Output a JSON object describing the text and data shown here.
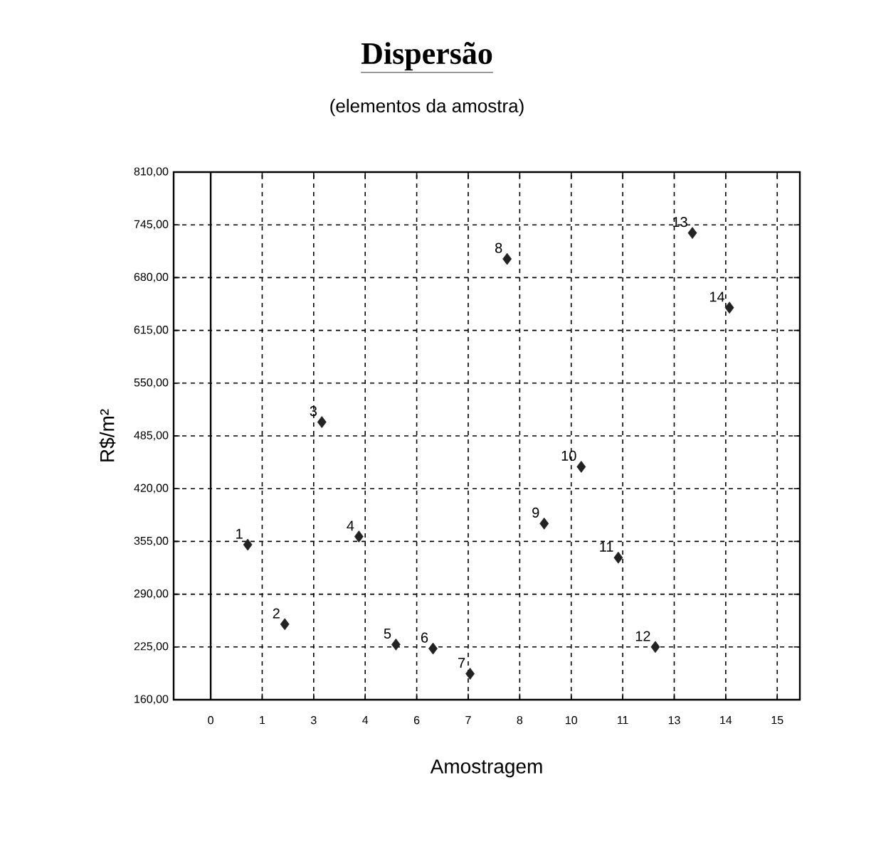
{
  "chart_data": {
    "type": "scatter",
    "title": "Dispersão",
    "subtitle": "(elementos da amostra)",
    "xlabel": "Amostragem",
    "ylabel": "R$/m²",
    "x": [
      1,
      2,
      3,
      4,
      5,
      6,
      7,
      8,
      9,
      10,
      11,
      12,
      13,
      14
    ],
    "values": [
      351,
      253,
      502,
      361,
      228,
      223,
      192,
      703,
      377,
      447,
      335,
      225,
      735,
      643
    ],
    "color": "#222222",
    "marker": "diamond",
    "grid": true,
    "xlim": [
      -1.0,
      15.9
    ],
    "ylim": [
      160,
      810
    ],
    "xticks": [
      {
        "value": 0,
        "label": "0"
      },
      {
        "value": 1.39,
        "label": "1"
      },
      {
        "value": 2.78,
        "label": "3"
      },
      {
        "value": 4.17,
        "label": "4"
      },
      {
        "value": 5.56,
        "label": "6"
      },
      {
        "value": 6.95,
        "label": "7"
      },
      {
        "value": 8.34,
        "label": "8"
      },
      {
        "value": 9.73,
        "label": "10"
      },
      {
        "value": 11.12,
        "label": "11"
      },
      {
        "value": 12.51,
        "label": "13"
      },
      {
        "value": 13.9,
        "label": "14"
      },
      {
        "value": 15.29,
        "label": "15"
      }
    ],
    "yticks": [
      {
        "value": 160,
        "label": "160,00"
      },
      {
        "value": 225,
        "label": "225,00"
      },
      {
        "value": 290,
        "label": "290,00"
      },
      {
        "value": 355,
        "label": "355,00"
      },
      {
        "value": 420,
        "label": "420,00"
      },
      {
        "value": 485,
        "label": "485,00"
      },
      {
        "value": 550,
        "label": "550,00"
      },
      {
        "value": 615,
        "label": "615,00"
      },
      {
        "value": 680,
        "label": "680,00"
      },
      {
        "value": 745,
        "label": "745,00"
      },
      {
        "value": 810,
        "label": "810,00"
      }
    ],
    "ref_lines": [
      {
        "axis": "x",
        "value": 0
      }
    ],
    "annotations": [
      {
        "text": "1",
        "x": 1,
        "y": 351
      },
      {
        "text": "2",
        "x": 2,
        "y": 253
      },
      {
        "text": "3",
        "x": 3,
        "y": 502
      },
      {
        "text": "4",
        "x": 4,
        "y": 361
      },
      {
        "text": "5",
        "x": 5,
        "y": 228
      },
      {
        "text": "6",
        "x": 6,
        "y": 223
      },
      {
        "text": "7",
        "x": 7,
        "y": 192
      },
      {
        "text": "8",
        "x": 8,
        "y": 703
      },
      {
        "text": "9",
        "x": 9,
        "y": 377
      },
      {
        "text": "10",
        "x": 10,
        "y": 447
      },
      {
        "text": "11",
        "x": 11,
        "y": 335
      },
      {
        "text": "12",
        "x": 12,
        "y": 225
      },
      {
        "text": "13",
        "x": 13,
        "y": 735
      },
      {
        "text": "14",
        "x": 14,
        "y": 643
      }
    ]
  }
}
